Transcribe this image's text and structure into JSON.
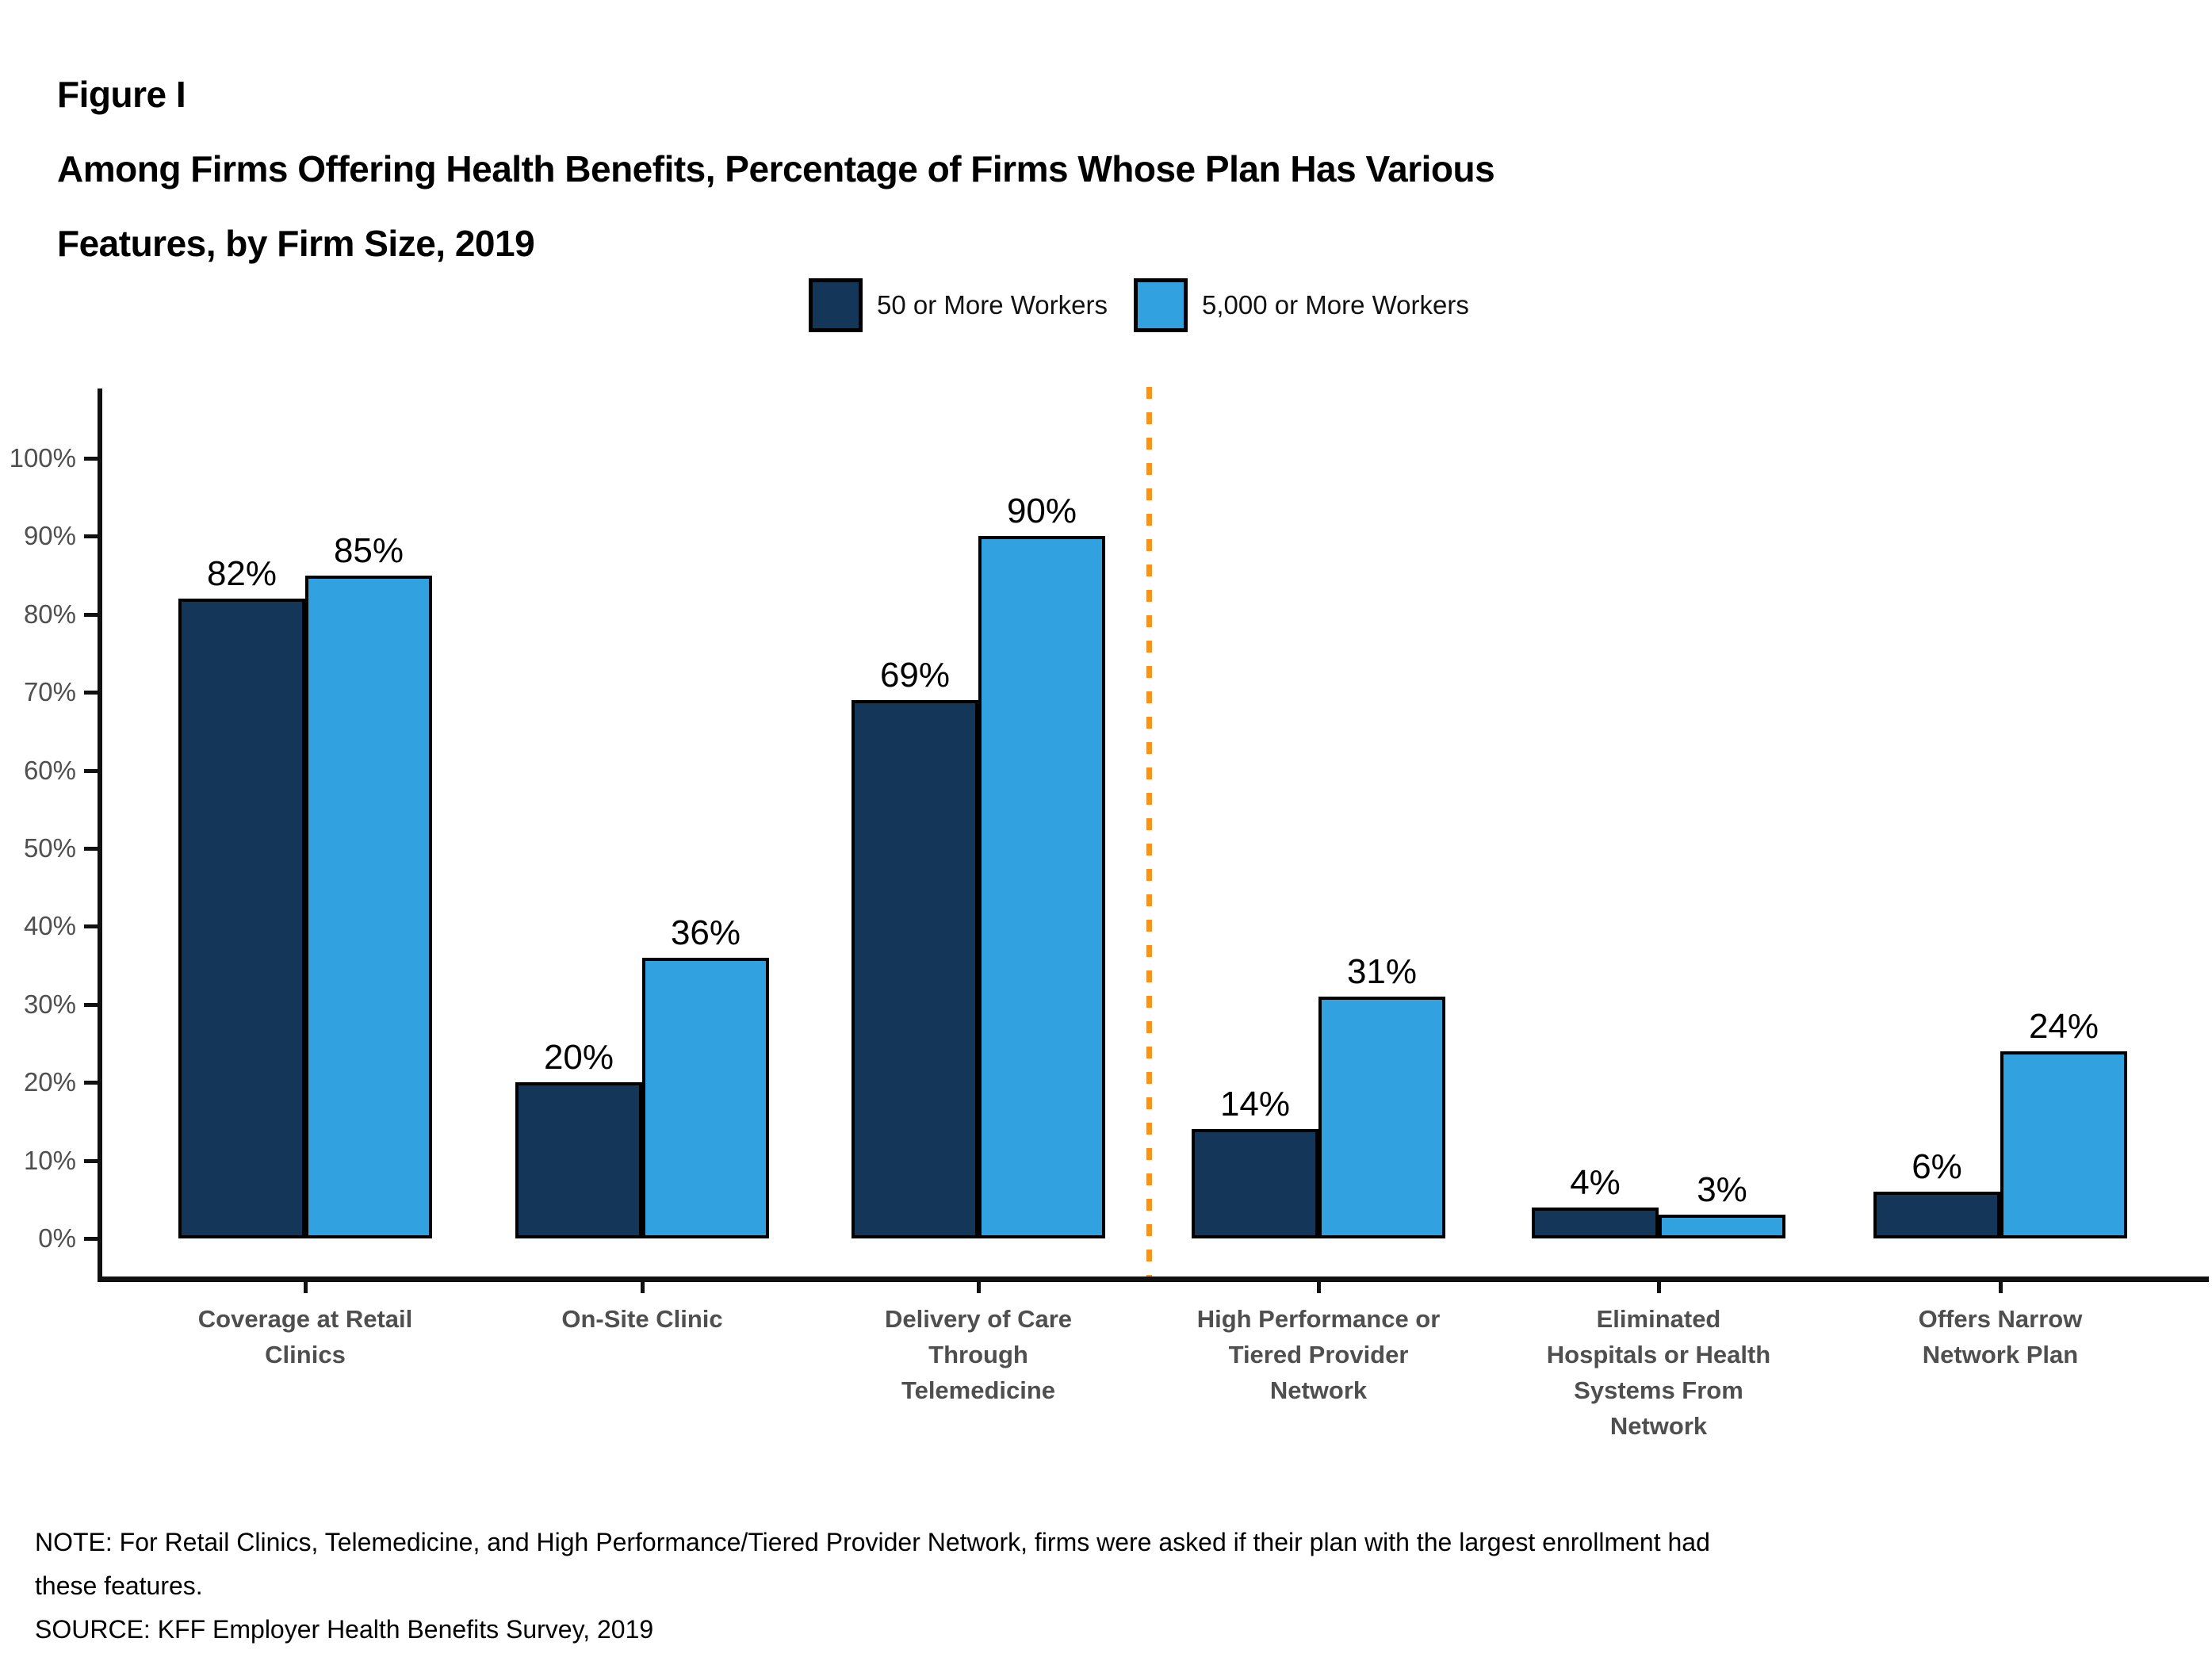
{
  "header": {
    "figure_label": "Figure I",
    "title": "Among Firms Offering Health Benefits, Percentage of Firms Whose Plan Has Various Features, by Firm Size, 2019",
    "title_lines": [
      "Among Firms Offering Health Benefits, Percentage of Firms Whose Plan Has Various",
      "Features, by Firm Size, 2019"
    ]
  },
  "legend": {
    "items": [
      {
        "label": "50 or More Workers",
        "color": "#143659"
      },
      {
        "label": "5,000 or More Workers",
        "color": "#32A1DF"
      }
    ]
  },
  "chart_data": {
    "type": "bar",
    "title": "Among Firms Offering Health Benefits, Percentage of Firms Whose Plan Has Various Features, by Firm Size, 2019",
    "categories": [
      "Coverage at Retail Clinics",
      "On-Site Clinic",
      "Delivery of Care Through Telemedicine",
      "High Performance or Tiered Provider Network",
      "Eliminated Hospitals or Health Systems From Network",
      "Offers Narrow Network Plan"
    ],
    "category_lines": [
      [
        "Coverage at Retail",
        "Clinics"
      ],
      [
        "On-Site Clinic"
      ],
      [
        "Delivery of Care",
        "Through",
        "Telemedicine"
      ],
      [
        "High Performance or",
        "Tiered Provider",
        "Network"
      ],
      [
        "Eliminated",
        "Hospitals or Health",
        "Systems From",
        "Network"
      ],
      [
        "Offers Narrow",
        "Network Plan"
      ]
    ],
    "series": [
      {
        "name": "50 or More Workers",
        "color": "#143659",
        "values": [
          82,
          20,
          69,
          14,
          4,
          6
        ],
        "value_labels": [
          "82%",
          "20%",
          "69%",
          "14%",
          "4%",
          "6%"
        ]
      },
      {
        "name": "5,000 or More Workers",
        "color": "#32A1DF",
        "values": [
          85,
          36,
          90,
          31,
          3,
          24
        ],
        "value_labels": [
          "85%",
          "36%",
          "90%",
          "31%",
          "3%",
          "24%"
        ]
      }
    ],
    "y_axis": {
      "min": 0,
      "max": 100,
      "step": 10,
      "format": "percent",
      "tick_labels": [
        "0%",
        "10%",
        "20%",
        "30%",
        "40%",
        "50%",
        "60%",
        "70%",
        "80%",
        "90%",
        "100%"
      ]
    },
    "grid": false,
    "legend_position": "top",
    "bar_border_color": "#000000",
    "divider_after_category_index": 2,
    "divider_color": "#F7941E",
    "divider_style": "dashed"
  },
  "footer": {
    "note": "NOTE: For Retail Clinics, Telemedicine, and High Performance/Tiered Provider Network, firms were asked if their plan with the largest enrollment had these features.",
    "note_lines": [
      "NOTE: For Retail Clinics, Telemedicine, and High Performance/Tiered Provider Network, firms were asked if their plan with the largest enrollment had",
      "these features."
    ],
    "source": "SOURCE: KFF Employer Health Benefits Survey, 2019"
  }
}
